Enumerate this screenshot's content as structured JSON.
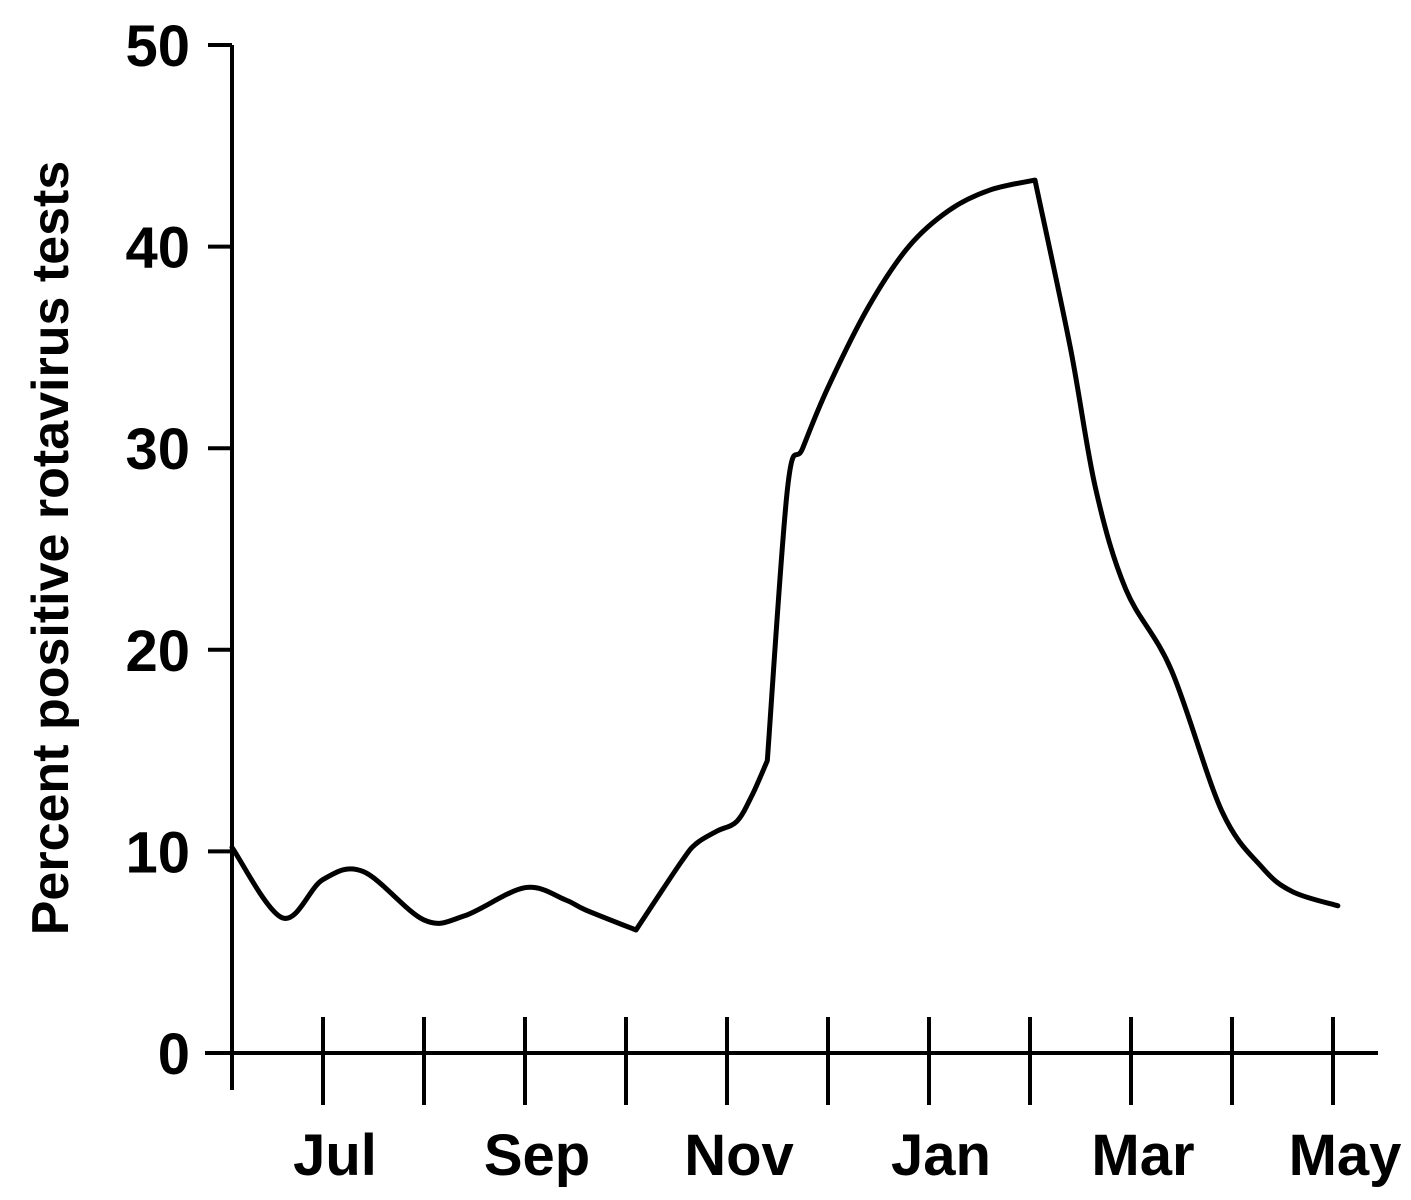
{
  "chart_data": {
    "type": "line",
    "title": "",
    "xlabel": "",
    "ylabel": "Percent positive rotavirus tests",
    "ylim": [
      0,
      50
    ],
    "yticks": [
      0,
      10,
      20,
      30,
      40,
      50
    ],
    "grid": false,
    "legend": "none",
    "x_tick_labels": [
      "Jul",
      "Sep",
      "Nov",
      "Jan",
      "Mar",
      "May"
    ],
    "x_unit": "months from June",
    "x_range": [
      0,
      11
    ],
    "series": [
      {
        "name": "",
        "color": "#000000",
        "x": [
          0.0,
          0.5,
          0.9,
          1.3,
          1.9,
          2.3,
          2.9,
          3.3,
          3.5,
          4.0,
          4.45,
          4.6,
          4.8,
          5.0,
          5.15,
          5.3,
          5.5,
          5.65,
          5.9,
          6.3,
          6.7,
          7.1,
          7.5,
          7.95,
          8.3,
          8.55,
          8.85,
          9.3,
          9.8,
          10.2,
          10.5,
          10.95
        ],
        "y": [
          10.2,
          6.7,
          8.6,
          9.0,
          6.6,
          6.8,
          8.2,
          7.6,
          7.1,
          6.1,
          9.5,
          10.4,
          11.0,
          11.5,
          12.8,
          14.5,
          28.0,
          30.0,
          33.0,
          37.0,
          40.0,
          41.8,
          42.8,
          43.3,
          35.0,
          28.0,
          23.0,
          19.0,
          12.0,
          9.2,
          8.0,
          7.3
        ]
      }
    ]
  }
}
